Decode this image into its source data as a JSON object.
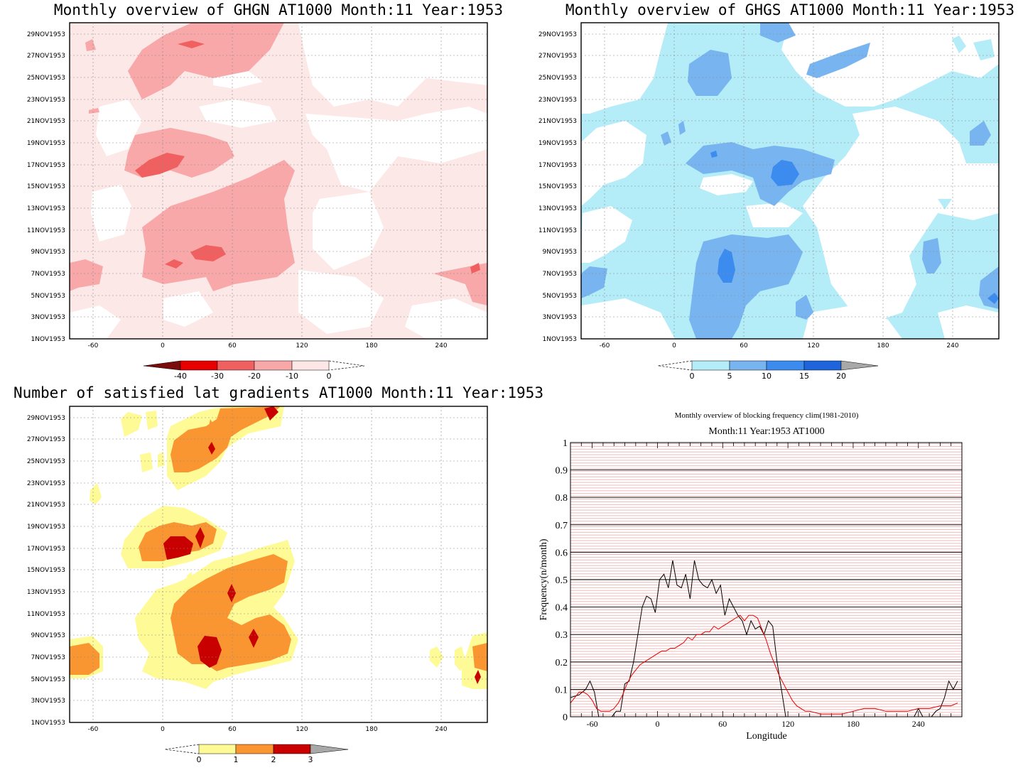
{
  "panels": {
    "ghgn": {
      "title": "Monthly overview of GHGN AT1000 Month:11 Year:1953",
      "colorbar_labels": [
        "-40",
        "-30",
        "-20",
        "-10",
        "0"
      ],
      "colorbar_colors": [
        "#7a0c0c",
        "#e60000",
        "#f06060",
        "#f8a8a8",
        "#fde6e6"
      ],
      "background": "#fde8e8"
    },
    "ghgs": {
      "title": "Monthly overview of GHGS AT1000 Month:11 Year:1953",
      "colorbar_labels": [
        "0",
        "5",
        "10",
        "15",
        "20"
      ],
      "colorbar_colors": [
        "#b4ecf8",
        "#78b4f0",
        "#3c8cf0",
        "#1e64dc"
      ],
      "background": "#b4ecf8"
    },
    "grad": {
      "title": "Number of satisfied lat gradients AT1000 Month:11 Year:1953",
      "colorbar_labels": [
        "0",
        "1",
        "2",
        "3"
      ],
      "colorbar_colors": [
        "#fefa96",
        "#fa9632",
        "#c80000"
      ],
      "background": "#ffffff"
    }
  },
  "shared_axes": {
    "y_ticks": [
      "1NOV1953",
      "3NOV1953",
      "5NOV1953",
      "7NOV1953",
      "9NOV1953",
      "11NOV1953",
      "13NOV1953",
      "15NOV1953",
      "17NOV1953",
      "19NOV1953",
      "21NOV1953",
      "23NOV1953",
      "25NOV1953",
      "27NOV1953",
      "29NOV1953"
    ],
    "x_ticks": [
      "-60",
      "0",
      "60",
      "120",
      "180",
      "240"
    ]
  },
  "chart_data": [
    {
      "type": "heatmap",
      "title": "Monthly overview of GHGN AT1000 Month:11 Year:1953",
      "x_range": [
        -80,
        280
      ],
      "y_range": [
        "1NOV1953",
        "30NOV1953"
      ],
      "levels": [
        -40,
        -30,
        -20,
        -10,
        0
      ]
    },
    {
      "type": "heatmap",
      "title": "Monthly overview of GHGS AT1000 Month:11 Year:1953",
      "x_range": [
        -80,
        280
      ],
      "y_range": [
        "1NOV1953",
        "30NOV1953"
      ],
      "levels": [
        0,
        5,
        10,
        15,
        20
      ]
    },
    {
      "type": "heatmap",
      "title": "Number of satisfied lat gradients AT1000 Month:11 Year:1953",
      "x_range": [
        -80,
        280
      ],
      "y_range": [
        "1NOV1953",
        "30NOV1953"
      ],
      "levels": [
        0,
        1,
        2,
        3
      ]
    },
    {
      "type": "line",
      "title": "Monthly overview of blocking frequency clim(1981-2010)",
      "subtitle": "Month:11 Year:1953  AT1000",
      "xlabel": "Longitude",
      "ylabel": "Frequency(n/month)",
      "xlim": [
        -80,
        280
      ],
      "ylim": [
        0,
        1
      ],
      "x_ticks": [
        "-60",
        "0",
        "60",
        "120",
        "180",
        "240"
      ],
      "y_ticks": [
        "0",
        "0.1",
        "0.2",
        "0.3",
        "0.4",
        "0.5",
        "0.6",
        "0.7",
        "0.8",
        "0.9",
        "1"
      ],
      "grid": true,
      "series": [
        {
          "color": "#000000",
          "x": [
            -80,
            -72,
            -66,
            -62,
            -58,
            -54,
            -50,
            -46,
            -42,
            -38,
            -34,
            -30,
            -26,
            -22,
            -18,
            -14,
            -10,
            -6,
            -2,
            2,
            6,
            10,
            14,
            18,
            22,
            26,
            30,
            34,
            38,
            42,
            46,
            50,
            54,
            58,
            62,
            66,
            70,
            74,
            78,
            82,
            86,
            90,
            94,
            98,
            102,
            106,
            110,
            114,
            118,
            122,
            126,
            130,
            140,
            150,
            160,
            170,
            180,
            190,
            200,
            210,
            220,
            230,
            236,
            240,
            244,
            248,
            252,
            256,
            260,
            264,
            268,
            272,
            276
          ],
          "values": [
            0.07,
            0.08,
            0.1,
            0.13,
            0.09,
            0.0,
            0.0,
            0.0,
            0.0,
            0.02,
            0.02,
            0.12,
            0.13,
            0.2,
            0.3,
            0.4,
            0.44,
            0.43,
            0.38,
            0.5,
            0.52,
            0.47,
            0.57,
            0.48,
            0.47,
            0.52,
            0.43,
            0.57,
            0.5,
            0.48,
            0.47,
            0.5,
            0.45,
            0.48,
            0.37,
            0.43,
            0.4,
            0.37,
            0.35,
            0.3,
            0.35,
            0.32,
            0.33,
            0.3,
            0.35,
            0.33,
            0.2,
            0.1,
            0.0,
            0.0,
            0.0,
            0.0,
            0.0,
            0.0,
            0.0,
            0.0,
            0.0,
            0.0,
            0.0,
            0.0,
            0.0,
            0.0,
            0.0,
            0.03,
            0.0,
            0.0,
            0.0,
            0.02,
            0.03,
            0.07,
            0.13,
            0.1,
            0.13
          ]
        },
        {
          "color": "#e60000",
          "x": [
            -80,
            -76,
            -72,
            -68,
            -64,
            -60,
            -56,
            -52,
            -48,
            -44,
            -40,
            -36,
            -32,
            -28,
            -24,
            -20,
            -16,
            -12,
            -8,
            -4,
            0,
            4,
            8,
            12,
            16,
            20,
            24,
            28,
            32,
            36,
            40,
            44,
            48,
            52,
            56,
            60,
            64,
            68,
            72,
            76,
            80,
            84,
            88,
            92,
            96,
            100,
            104,
            108,
            112,
            116,
            120,
            124,
            128,
            132,
            136,
            140,
            150,
            160,
            170,
            180,
            190,
            200,
            210,
            220,
            230,
            240,
            250,
            260,
            270,
            276
          ],
          "values": [
            0.05,
            0.07,
            0.09,
            0.09,
            0.08,
            0.06,
            0.03,
            0.02,
            0.02,
            0.02,
            0.03,
            0.05,
            0.08,
            0.12,
            0.15,
            0.17,
            0.19,
            0.2,
            0.21,
            0.22,
            0.23,
            0.24,
            0.24,
            0.25,
            0.25,
            0.26,
            0.27,
            0.29,
            0.28,
            0.3,
            0.3,
            0.31,
            0.31,
            0.33,
            0.32,
            0.33,
            0.34,
            0.35,
            0.36,
            0.37,
            0.35,
            0.37,
            0.37,
            0.36,
            0.32,
            0.28,
            0.23,
            0.19,
            0.15,
            0.12,
            0.09,
            0.06,
            0.04,
            0.03,
            0.02,
            0.02,
            0.01,
            0.01,
            0.01,
            0.02,
            0.03,
            0.03,
            0.02,
            0.02,
            0.02,
            0.03,
            0.03,
            0.04,
            0.04,
            0.05
          ]
        }
      ]
    }
  ]
}
